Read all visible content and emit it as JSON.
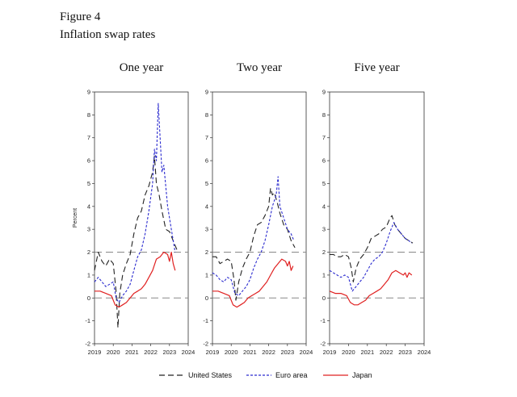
{
  "figure": {
    "label": "Figure 4",
    "title": "Inflation swap rates"
  },
  "colors": {
    "us": "#222222",
    "euro": "#2b2bcf",
    "japan": "#e02020",
    "ref": "#888888"
  },
  "legend": [
    {
      "key": "us",
      "label": "United States"
    },
    {
      "key": "euro",
      "label": "Euro area"
    },
    {
      "key": "japan",
      "label": "Japan"
    }
  ],
  "chart_data": [
    {
      "type": "line",
      "title": "One year",
      "ylabel": "Percent",
      "xlim": [
        2019,
        2024
      ],
      "ylim": [
        -2,
        9
      ],
      "xticks": [
        2019,
        2020,
        2021,
        2022,
        2023,
        2024
      ],
      "yticks": [
        -2,
        -1,
        0,
        1,
        2,
        3,
        4,
        5,
        6,
        7,
        8,
        9
      ],
      "reference_lines": [
        0,
        2
      ],
      "series": [
        {
          "name": "United States",
          "key": "us",
          "x": [
            2019.0,
            2019.2,
            2019.4,
            2019.6,
            2019.8,
            2020.0,
            2020.15,
            2020.25,
            2020.35,
            2020.5,
            2020.7,
            2020.9,
            2021.1,
            2021.3,
            2021.5,
            2021.7,
            2021.9,
            2022.1,
            2022.2,
            2022.3,
            2022.45,
            2022.6,
            2022.8,
            2023.0,
            2023.2,
            2023.4
          ],
          "y": [
            1.2,
            2.0,
            1.6,
            1.4,
            1.7,
            1.5,
            0.3,
            -1.3,
            0.2,
            1.0,
            1.5,
            1.9,
            2.8,
            3.5,
            3.8,
            4.5,
            4.9,
            5.5,
            6.2,
            5.0,
            4.5,
            3.8,
            3.0,
            2.9,
            2.5,
            2.1
          ]
        },
        {
          "name": "Euro area",
          "key": "euro",
          "x": [
            2019.0,
            2019.2,
            2019.4,
            2019.6,
            2019.8,
            2020.0,
            2020.15,
            2020.3,
            2020.5,
            2020.7,
            2020.9,
            2021.1,
            2021.3,
            2021.5,
            2021.7,
            2021.9,
            2022.1,
            2022.2,
            2022.3,
            2022.4,
            2022.5,
            2022.6,
            2022.7,
            2022.9,
            2023.1,
            2023.3
          ],
          "y": [
            0.7,
            0.9,
            0.7,
            0.5,
            0.6,
            0.7,
            0.0,
            -0.2,
            0.1,
            0.3,
            0.6,
            1.2,
            1.8,
            2.1,
            2.8,
            3.8,
            5.0,
            6.5,
            6.0,
            8.5,
            7.0,
            5.5,
            5.8,
            4.0,
            3.0,
            2.0
          ]
        },
        {
          "name": "Japan",
          "key": "japan",
          "x": [
            2019.0,
            2019.3,
            2019.6,
            2019.9,
            2020.1,
            2020.3,
            2020.5,
            2020.7,
            2020.9,
            2021.1,
            2021.3,
            2021.5,
            2021.7,
            2021.9,
            2022.1,
            2022.3,
            2022.5,
            2022.7,
            2022.9,
            2023.0,
            2023.1,
            2023.2,
            2023.3
          ],
          "y": [
            0.3,
            0.3,
            0.2,
            0.1,
            -0.3,
            -0.4,
            -0.3,
            -0.2,
            0.0,
            0.2,
            0.3,
            0.4,
            0.6,
            0.9,
            1.2,
            1.7,
            1.8,
            2.0,
            1.9,
            1.6,
            2.0,
            1.5,
            1.2
          ]
        }
      ]
    },
    {
      "type": "line",
      "title": "Two year",
      "xlim": [
        2019,
        2024
      ],
      "ylim": [
        -2,
        9
      ],
      "xticks": [
        2019,
        2020,
        2021,
        2022,
        2023,
        2024
      ],
      "yticks": [
        -2,
        -1,
        0,
        1,
        2,
        3,
        4,
        5,
        6,
        7,
        8,
        9
      ],
      "reference_lines": [
        0,
        2
      ],
      "series": [
        {
          "name": "United States",
          "key": "us",
          "x": [
            2019.0,
            2019.2,
            2019.4,
            2019.6,
            2019.8,
            2020.0,
            2020.15,
            2020.25,
            2020.4,
            2020.6,
            2020.8,
            2021.0,
            2021.2,
            2021.4,
            2021.6,
            2021.8,
            2022.0,
            2022.1,
            2022.2,
            2022.3,
            2022.45,
            2022.6,
            2022.8,
            2023.0,
            2023.2,
            2023.4
          ],
          "y": [
            1.8,
            1.8,
            1.5,
            1.6,
            1.7,
            1.6,
            0.8,
            -0.1,
            0.7,
            1.3,
            1.7,
            2.0,
            2.7,
            3.2,
            3.3,
            3.6,
            4.0,
            4.8,
            4.5,
            4.6,
            4.2,
            3.7,
            3.2,
            3.0,
            2.5,
            2.2
          ]
        },
        {
          "name": "Euro area",
          "key": "euro",
          "x": [
            2019.0,
            2019.2,
            2019.4,
            2019.6,
            2019.8,
            2020.0,
            2020.2,
            2020.4,
            2020.6,
            2020.8,
            2021.0,
            2021.2,
            2021.4,
            2021.6,
            2021.8,
            2022.0,
            2022.2,
            2022.4,
            2022.5,
            2022.6,
            2022.8,
            2023.0,
            2023.2,
            2023.35
          ],
          "y": [
            1.1,
            1.0,
            0.8,
            0.7,
            0.9,
            0.8,
            0.2,
            0.1,
            0.3,
            0.5,
            0.8,
            1.3,
            1.7,
            2.0,
            2.5,
            3.2,
            4.0,
            4.5,
            5.3,
            4.0,
            3.5,
            3.0,
            2.8,
            2.5
          ]
        },
        {
          "name": "Japan",
          "key": "japan",
          "x": [
            2019.0,
            2019.3,
            2019.6,
            2019.9,
            2020.1,
            2020.3,
            2020.5,
            2020.7,
            2020.9,
            2021.1,
            2021.3,
            2021.5,
            2021.7,
            2021.9,
            2022.1,
            2022.3,
            2022.5,
            2022.7,
            2022.9,
            2023.0,
            2023.1,
            2023.2,
            2023.3
          ],
          "y": [
            0.3,
            0.3,
            0.2,
            0.1,
            -0.3,
            -0.4,
            -0.3,
            -0.2,
            0.0,
            0.1,
            0.2,
            0.3,
            0.5,
            0.7,
            1.0,
            1.3,
            1.5,
            1.7,
            1.6,
            1.4,
            1.6,
            1.2,
            1.4
          ]
        }
      ]
    },
    {
      "type": "line",
      "title": "Five year",
      "xlim": [
        2019,
        2024
      ],
      "ylim": [
        -2,
        9
      ],
      "xticks": [
        2019,
        2020,
        2021,
        2022,
        2023,
        2024
      ],
      "yticks": [
        -2,
        -1,
        0,
        1,
        2,
        3,
        4,
        5,
        6,
        7,
        8,
        9
      ],
      "reference_lines": [
        0,
        2
      ],
      "series": [
        {
          "name": "United States",
          "key": "us",
          "x": [
            2019.0,
            2019.2,
            2019.4,
            2019.6,
            2019.8,
            2020.0,
            2020.15,
            2020.25,
            2020.4,
            2020.6,
            2020.8,
            2021.0,
            2021.2,
            2021.4,
            2021.6,
            2021.8,
            2022.0,
            2022.2,
            2022.3,
            2022.45,
            2022.6,
            2022.8,
            2023.0,
            2023.2,
            2023.4
          ],
          "y": [
            1.9,
            1.9,
            1.8,
            1.8,
            1.9,
            1.8,
            1.3,
            0.7,
            1.3,
            1.7,
            1.9,
            2.2,
            2.6,
            2.7,
            2.8,
            3.0,
            3.1,
            3.5,
            3.6,
            3.2,
            3.0,
            2.8,
            2.6,
            2.5,
            2.4
          ]
        },
        {
          "name": "Euro area",
          "key": "euro",
          "x": [
            2019.0,
            2019.2,
            2019.4,
            2019.6,
            2019.8,
            2020.0,
            2020.2,
            2020.4,
            2020.6,
            2020.8,
            2021.0,
            2021.2,
            2021.4,
            2021.6,
            2021.8,
            2022.0,
            2022.2,
            2022.4,
            2022.6,
            2022.8,
            2023.0,
            2023.2,
            2023.35
          ],
          "y": [
            1.2,
            1.1,
            1.0,
            0.9,
            1.0,
            0.9,
            0.3,
            0.5,
            0.7,
            0.9,
            1.2,
            1.5,
            1.7,
            1.8,
            2.0,
            2.4,
            2.9,
            3.3,
            3.0,
            2.8,
            2.6,
            2.5,
            2.4
          ]
        },
        {
          "name": "Japan",
          "key": "japan",
          "x": [
            2019.0,
            2019.3,
            2019.6,
            2019.9,
            2020.1,
            2020.3,
            2020.5,
            2020.7,
            2020.9,
            2021.1,
            2021.3,
            2021.5,
            2021.7,
            2021.9,
            2022.1,
            2022.3,
            2022.5,
            2022.7,
            2022.9,
            2023.0,
            2023.1,
            2023.2,
            2023.35
          ],
          "y": [
            0.3,
            0.2,
            0.2,
            0.1,
            -0.2,
            -0.3,
            -0.3,
            -0.2,
            -0.1,
            0.1,
            0.2,
            0.3,
            0.4,
            0.6,
            0.8,
            1.1,
            1.2,
            1.1,
            1.0,
            1.1,
            0.9,
            1.1,
            1.0
          ]
        }
      ]
    }
  ]
}
